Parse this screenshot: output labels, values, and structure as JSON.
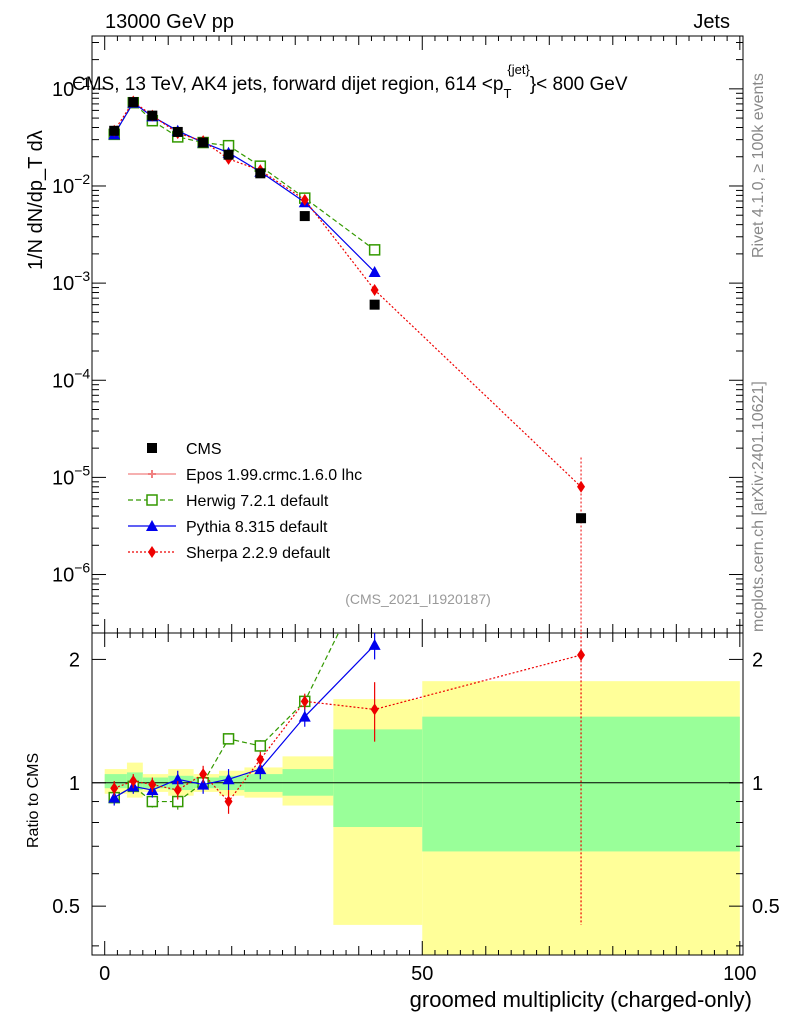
{
  "header": {
    "left": "13000 GeV pp",
    "right": "Jets"
  },
  "side_labels": {
    "rivet": "Rivet 4.1.0, ≥ 100k events",
    "mcplots": "mcplots.cern.ch [arXiv:2401.10621]"
  },
  "chart_data": {
    "type": "line",
    "title_main": "CMS, 13 TeV, AK4 jets, forward dijet region, 614 <p",
    "title_sub": "T",
    "title_sup": "{jet}",
    "title_tail": "}< 800 GeV",
    "analysis_tag": "(CMS_2021_I1920187)",
    "ylabel_top": "1/N dN/dp_T dλ",
    "ylabel_bottom": "Ratio to CMS",
    "xlabel": "groomed multiplicity (charged-only)",
    "xlim": [
      -2,
      100.5
    ],
    "ylim_top": [
      2.5e-07,
      0.35
    ],
    "ylim_bottom": [
      0.38,
      2.32
    ],
    "x_ticks": [
      0,
      50,
      100
    ],
    "y_ticks_top": [
      {
        "v": 1e-06,
        "base": "10",
        "exp": "−6"
      },
      {
        "v": 1e-05,
        "base": "10",
        "exp": "−5"
      },
      {
        "v": 0.0001,
        "base": "10",
        "exp": "−4"
      },
      {
        "v": 0.001,
        "base": "10",
        "exp": "−3"
      },
      {
        "v": 0.01,
        "base": "10",
        "exp": "−2"
      },
      {
        "v": 0.1,
        "base": "10",
        "exp": "−1"
      }
    ],
    "y_ticks_bottom": [
      {
        "v": 0.5,
        "label": "0.5"
      },
      {
        "v": 1,
        "label": "1"
      },
      {
        "v": 2,
        "label": "2"
      }
    ],
    "bins": [
      {
        "lo": 0,
        "hi": 3.5
      },
      {
        "lo": 3.5,
        "hi": 6
      },
      {
        "lo": 6,
        "hi": 10
      },
      {
        "lo": 10,
        "hi": 14
      },
      {
        "lo": 14,
        "hi": 18
      },
      {
        "lo": 18,
        "hi": 22
      },
      {
        "lo": 22,
        "hi": 28
      },
      {
        "lo": 28,
        "hi": 36
      },
      {
        "lo": 36,
        "hi": 50
      },
      {
        "lo": 50,
        "hi": 100
      }
    ],
    "band_yellow": [
      [
        0.94,
        1.08
      ],
      [
        0.92,
        1.12
      ],
      [
        0.95,
        1.05
      ],
      [
        0.93,
        1.08
      ],
      [
        0.95,
        1.05
      ],
      [
        0.93,
        1.07
      ],
      [
        0.92,
        1.09
      ],
      [
        0.88,
        1.16
      ],
      [
        0.45,
        1.6
      ],
      [
        0.3,
        1.77
      ]
    ],
    "band_green": [
      [
        0.97,
        1.05
      ],
      [
        0.96,
        1.06
      ],
      [
        0.97,
        1.03
      ],
      [
        0.96,
        1.04
      ],
      [
        0.97,
        1.03
      ],
      [
        0.96,
        1.04
      ],
      [
        0.95,
        1.05
      ],
      [
        0.93,
        1.08
      ],
      [
        0.78,
        1.35
      ],
      [
        0.68,
        1.45
      ]
    ],
    "cms": {
      "name": "CMS",
      "x": [
        1.5,
        4.5,
        7.5,
        11.5,
        15.5,
        19.5,
        24.5,
        31.5,
        42.5,
        75
      ],
      "y": [
        0.037,
        0.073,
        0.053,
        0.036,
        0.028,
        0.021,
        0.0135,
        0.0049,
        0.0006,
        3.8e-06
      ]
    },
    "series": [
      {
        "name": "Epos 1.99.crmc.1.6.0 lhc",
        "color": "#f08080",
        "dash": "",
        "marker": "cross",
        "x": [],
        "y": [],
        "ratio": [],
        "ratio_err": []
      },
      {
        "name": "Herwig 7.2.1 default",
        "color": "#339900",
        "dash": "5,3",
        "marker": "open-square",
        "x": [
          1.5,
          4.5,
          7.5,
          11.5,
          15.5,
          19.5,
          24.5,
          31.5,
          42.5
        ],
        "y": [
          0.034,
          0.072,
          0.047,
          0.032,
          0.028,
          0.026,
          0.016,
          0.0075,
          0.0022
        ],
        "ratio": [
          0.92,
          0.98,
          0.9,
          0.9,
          1.0,
          1.28,
          1.23,
          1.58,
          3.5
        ],
        "ratio_err": [
          0.03,
          0.03,
          0.03,
          0.04,
          0.03,
          0.04,
          0.04,
          0.04,
          0.08
        ]
      },
      {
        "name": "Pythia 8.315 default",
        "color": "#0000ee",
        "dash": "",
        "marker": "triangle",
        "x": [
          1.5,
          4.5,
          7.5,
          11.5,
          15.5,
          19.5,
          24.5,
          31.5,
          42.5
        ],
        "y": [
          0.034,
          0.072,
          0.052,
          0.037,
          0.028,
          0.022,
          0.014,
          0.0068,
          0.0013
        ],
        "ratio": [
          0.92,
          0.98,
          0.96,
          1.02,
          0.99,
          1.02,
          1.08,
          1.45,
          2.17
        ],
        "ratio_err": [
          0.04,
          0.04,
          0.04,
          0.05,
          0.05,
          0.06,
          0.06,
          0.08,
          0.17
        ]
      },
      {
        "name": "Sherpa 2.2.9 default",
        "color": "#ee0000",
        "dash": "2,2",
        "marker": "diamond",
        "x": [
          1.5,
          4.5,
          7.5,
          11.5,
          15.5,
          19.5,
          24.5,
          31.5,
          42.5,
          75
        ],
        "y": [
          0.037,
          0.074,
          0.053,
          0.035,
          0.029,
          0.019,
          0.0145,
          0.0072,
          0.00085,
          8e-06
        ],
        "ratio": [
          0.97,
          1.01,
          0.99,
          0.96,
          1.05,
          0.9,
          1.14,
          1.58,
          1.51,
          2.05
        ],
        "ratio_err": [
          0.04,
          0.04,
          0.04,
          0.05,
          0.05,
          0.06,
          0.05,
          0.07,
          0.25,
          1.6
        ]
      }
    ]
  }
}
